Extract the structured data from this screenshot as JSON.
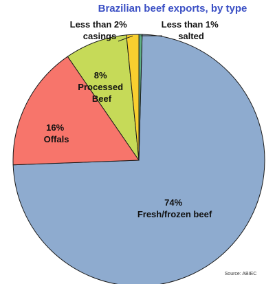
{
  "chart_data": {
    "type": "pie",
    "title": "Brazilian beef exports, by type",
    "source": "Source: ABIEC",
    "slices": [
      {
        "name": "Fresh/frozen beef",
        "value": 74,
        "label_value": "74%",
        "color": "#8eabcf"
      },
      {
        "name": "Offals",
        "value": 16,
        "label_value": "16%",
        "color": "#f7756b"
      },
      {
        "name": "Processed Beef",
        "value": 8,
        "label_value": "8%",
        "color": "#c6da58"
      },
      {
        "name": "casings",
        "value": 1.6,
        "label_value": "Less than 2%",
        "color": "#f8cf2f"
      },
      {
        "name": "salted",
        "value": 0.4,
        "label_value": "Less than 1%",
        "color": "#5fb085"
      }
    ]
  }
}
